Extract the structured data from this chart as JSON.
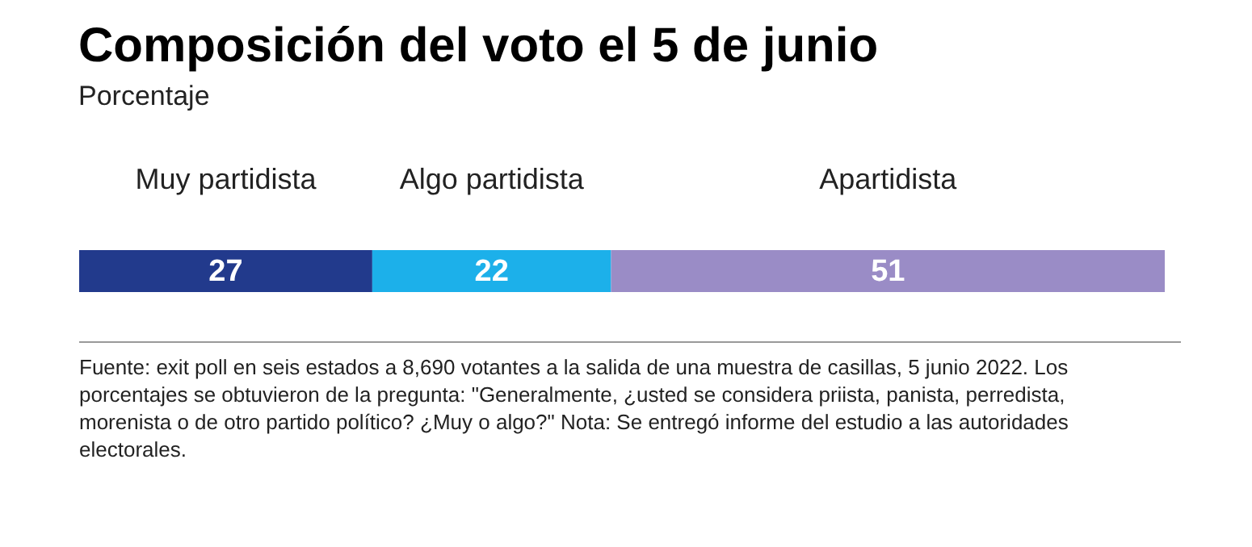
{
  "chart_data": {
    "type": "bar",
    "orientation": "horizontal",
    "stacked": true,
    "data_labels": true,
    "title": "Composición del voto el 5 de junio",
    "subtitle": "Porcentaje",
    "legend": false,
    "series": [
      {
        "name": "Muy partidista",
        "color": "#223a8c",
        "values": [
          27
        ]
      },
      {
        "name": "Algo partidista",
        "color": "#1cb0ea",
        "values": [
          22
        ]
      },
      {
        "name": "Apartidista",
        "color": "#9a8cc6",
        "values": [
          51
        ]
      }
    ],
    "annotations": [
      "Fuente: exit poll en seis estados a 8,690 votantes a la salida de una muestra de casillas, 5 junio 2022. Los porcentajes se obtuvieron de la pregunta: \"Generalmente, ¿usted se considera priista, panista, perredista, morenista o de otro partido político? ¿Muy o algo?\" Nota: Se entregó informe del estudio a las autoridades electorales."
    ]
  }
}
